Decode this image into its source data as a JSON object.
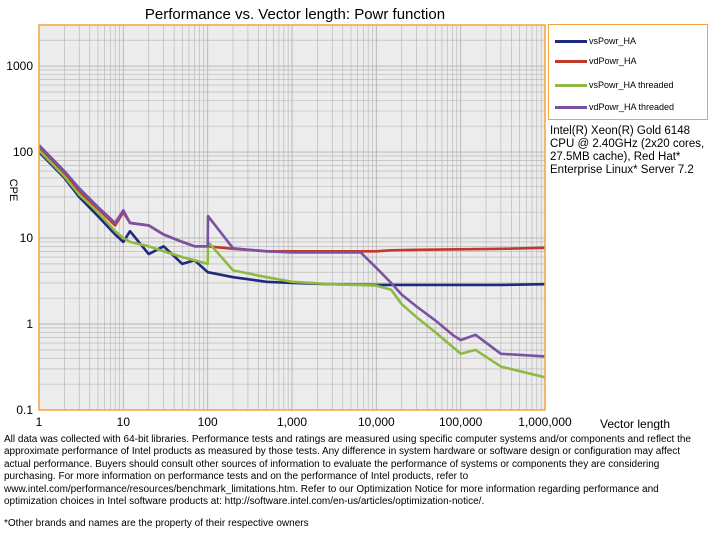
{
  "chart_data": {
    "type": "line",
    "title": "Performance vs. Vector length: Powr function",
    "xlabel": "Vector length",
    "ylabel": "CPE",
    "xscale": "log",
    "yscale": "log",
    "xlim": [
      1,
      1000000
    ],
    "ylim": [
      0.1,
      3000
    ],
    "x_ticks": [
      "1",
      "10",
      "100",
      "1,000",
      "10,000",
      "100,000",
      "1,000,000"
    ],
    "y_ticks": [
      "0.1",
      "1",
      "10",
      "100",
      "1000"
    ],
    "grid": true,
    "legend_position": "right",
    "series": [
      {
        "name": "vsPowr_HA",
        "color": "#1f2a7a",
        "x": [
          1,
          2,
          3,
          5,
          8,
          10,
          12,
          20,
          30,
          50,
          70,
          100,
          200,
          500,
          1000,
          3000,
          10000,
          15000,
          30000,
          100000,
          300000,
          1000000
        ],
        "y": [
          100,
          50,
          30,
          18,
          11,
          9,
          12,
          6.5,
          8,
          5,
          5.5,
          4,
          3.5,
          3.1,
          3.0,
          2.9,
          2.85,
          2.85,
          2.85,
          2.85,
          2.85,
          2.9
        ]
      },
      {
        "name": "vdPowr_HA",
        "color": "#c0392b",
        "x": [
          1,
          2,
          3,
          5,
          8,
          10,
          12,
          20,
          30,
          50,
          70,
          100,
          200,
          500,
          1000,
          3000,
          10000,
          15000,
          30000,
          100000,
          300000,
          1000000
        ],
        "y": [
          110,
          55,
          35,
          22,
          14,
          20,
          15,
          14,
          11,
          9,
          8,
          8,
          7.5,
          7.0,
          7.0,
          7.0,
          7.0,
          7.2,
          7.3,
          7.4,
          7.5,
          7.7
        ]
      },
      {
        "name": "vsPowr_HA threaded",
        "color": "#8fb944",
        "x": [
          1,
          2,
          3,
          5,
          8,
          10,
          12,
          20,
          30,
          50,
          70,
          100,
          101,
          200,
          500,
          1000,
          3000,
          10000,
          15000,
          20000,
          30000,
          50000,
          100000,
          150000,
          300000,
          1000000
        ],
        "y": [
          105,
          52,
          32,
          20,
          12,
          10,
          9,
          8,
          7,
          6,
          5.5,
          5,
          9,
          4.2,
          3.5,
          3.1,
          2.9,
          2.8,
          2.5,
          1.7,
          1.2,
          0.8,
          0.45,
          0.5,
          0.32,
          0.24
        ]
      },
      {
        "name": "vdPowr_HA threaded",
        "color": "#7b52a3",
        "x": [
          1,
          2,
          3,
          5,
          8,
          10,
          12,
          20,
          30,
          50,
          70,
          100,
          101,
          200,
          500,
          1000,
          3000,
          6500,
          10000,
          15000,
          20000,
          30000,
          50000,
          80000,
          100000,
          150000,
          300000,
          1000000
        ],
        "y": [
          120,
          60,
          38,
          23,
          15,
          21,
          15,
          14,
          11,
          9,
          8,
          8,
          18,
          7.6,
          7.0,
          6.8,
          6.8,
          6.8,
          4.5,
          3.0,
          2.2,
          1.6,
          1.1,
          0.75,
          0.65,
          0.75,
          0.45,
          0.42
        ]
      }
    ]
  },
  "legend": {
    "items": [
      {
        "label": "vsPowr_HA",
        "color": "#1f2a7a"
      },
      {
        "label": "vdPowr_HA",
        "color": "#c0392b"
      },
      {
        "label": "vsPowr_HA threaded",
        "color": "#8fb944"
      },
      {
        "label": "vdPowr_HA threaded",
        "color": "#7b52a3"
      }
    ]
  },
  "cpu_note": "Intel(R) Xeon(R) Gold 6148 CPU @ 2.40GHz (2x20 cores, 27.5MB cache), Red Hat* Enterprise Linux* Server 7.2",
  "footer_note": "All data was collected with 64-bit libraries. Performance tests and ratings are measured using specific computer systems and/or components and reflect the approximate performance of Intel products as measured by those tests. Any difference in system hardware or software design or configuration may affect actual performance. Buyers should consult other sources of information to evaluate the performance of systems or components they are considering purchasing. For more information on performance tests and on the performance of Intel products, refer to www.intel.com/performance/resources/benchmark_limitations.htm. Refer to our Optimization Notice for more information regarding performance and optimization choices in Intel software products at: http://software.intel.com/en-us/articles/optimization-notice/.",
  "trademark_note": "*Other brands and names are the property of their respective owners",
  "colors": {
    "plot_border": "#f2a53f",
    "plot_background": "#ececec",
    "grid": "#b3b3b3"
  }
}
